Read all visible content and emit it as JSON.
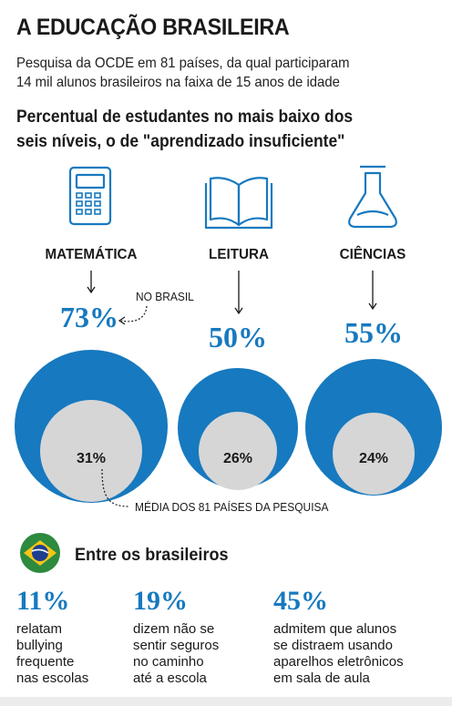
{
  "header": {
    "title": "A EDUCAÇÃO BRASILEIRA",
    "subtitle_lines": [
      "Pesquisa da OCDE em 81 países, da qual participaram",
      "14 mil alunos brasileiros na faixa de 15 anos de idade"
    ],
    "question_lines": [
      "Percentual de estudantes no mais baixo dos",
      "seis níveis, o de \"aprendizado insuficiente\""
    ]
  },
  "annotations": {
    "brasil": "NO BRASIL",
    "media": "MÉDIA DOS 81 PAÍSES DA PESQUISA"
  },
  "icons": [
    "calculator-icon",
    "open-book-icon",
    "flask-icon",
    "brazil-flag-icon"
  ],
  "colors": {
    "brasil": "#1779bf",
    "media": "#d6d6d6",
    "text": "#1a1a1a"
  },
  "chart_data": {
    "type": "bubble",
    "categories": [
      "MATEMÁTICA",
      "LEITURA",
      "CIÊNCIAS"
    ],
    "series": [
      {
        "name": "NO BRASIL",
        "values": [
          73,
          50,
          55
        ]
      },
      {
        "name": "MÉDIA DOS 81 PAÍSES DA PESQUISA",
        "values": [
          31,
          26,
          24
        ]
      }
    ],
    "value_labels_brasil": [
      "73%",
      "50%",
      "55%"
    ],
    "value_labels_media": [
      "31%",
      "26%",
      "24%"
    ]
  },
  "brazilians": {
    "heading": "Entre os brasileiros",
    "stats": [
      {
        "value": "11%",
        "lines": [
          "relatam",
          "bullying",
          "frequente",
          "nas escolas"
        ]
      },
      {
        "value": "19%",
        "lines": [
          "dizem não se",
          "sentir seguros",
          "no caminho",
          "até a escola"
        ]
      },
      {
        "value": "45%",
        "lines": [
          "admitem que alunos",
          "se distraem usando",
          "aparelhos eletrônicos",
          "em sala de aula"
        ]
      }
    ]
  }
}
